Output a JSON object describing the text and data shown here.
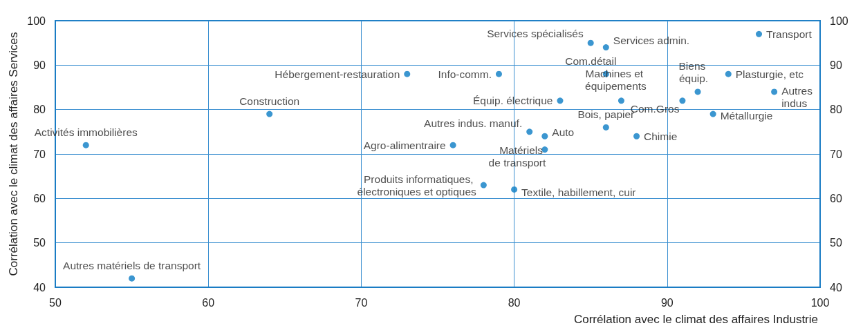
{
  "chart_data": {
    "type": "scatter",
    "xlabel": "Corrélation avec le climat des affaires Industrie",
    "ylabel": "Corrélation avec le climat des affaires Services",
    "x": [
      52,
      55,
      64,
      73,
      76,
      79,
      78,
      80,
      81,
      82,
      82,
      83,
      85,
      86,
      86,
      86,
      87,
      88,
      91,
      92,
      93,
      94,
      96,
      97
    ],
    "series": [
      {
        "color": "#0a7cc4",
        "values": [
          72,
          42,
          79,
          88,
          72,
          88,
          63,
          62,
          75,
          74,
          71,
          82,
          95,
          94,
          88,
          76,
          82,
          74,
          82,
          84,
          79,
          88,
          97,
          84
        ],
        "value_labels": [
          "Activités immobilières",
          "Autres matériels de transport",
          "Construction",
          "Hébergement-restauration",
          "Agro-alimentraire",
          "Info-comm.",
          "Produits informatiques, électroniques et optiques",
          "Textile, habillement, cuir",
          "Autres indus. manuf.",
          "Auto",
          "Matériels de transport",
          "Équip. électrique",
          "Services spécialisés",
          "Services admin.",
          "Com.détail",
          "Bois, papier",
          "Machines et équipements",
          "Chimie",
          "Com.Gros",
          "Biens équip.",
          "Métallurgie",
          "Plasturgie, etc",
          "Transport",
          "Autres indus"
        ]
      }
    ],
    "xlim": [
      50,
      100
    ],
    "xticks": [
      50,
      60,
      70,
      80,
      90,
      100
    ],
    "ylim": [
      40,
      100
    ],
    "yticks": [
      40,
      50,
      60,
      70,
      80,
      90,
      100
    ],
    "y2lim": [
      40,
      100
    ],
    "y2ticks": [
      40,
      50,
      60,
      70,
      80,
      90,
      100
    ],
    "grid": true,
    "marker": "circle"
  }
}
